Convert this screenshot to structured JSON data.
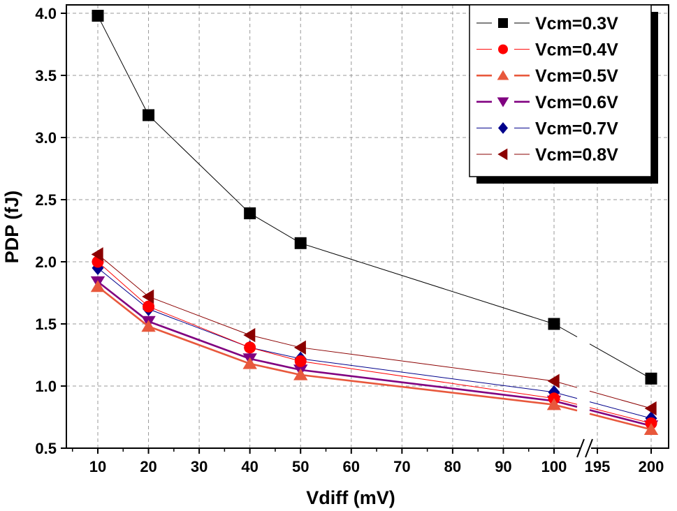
{
  "chart_data": {
    "type": "line",
    "title": "",
    "xlabel": "Vdiff (mV)",
    "ylabel": "PDP (fJ)",
    "ylim": [
      0.5,
      4.0
    ],
    "x_axis": {
      "type": "broken",
      "break_between": [
        100,
        195
      ],
      "segments": [
        {
          "range": [
            5,
            100
          ],
          "ticks": [
            10,
            20,
            30,
            40,
            50,
            60,
            70,
            80,
            90,
            100
          ]
        },
        {
          "range": [
            195,
            202
          ],
          "ticks": [
            195,
            200
          ]
        }
      ]
    },
    "y_ticks": [
      "0.5",
      "1.0",
      "1.5",
      "2.0",
      "2.5",
      "3.0",
      "3.5",
      "4.0"
    ],
    "grid": "horizontal-dashed",
    "x": [
      10,
      20,
      40,
      50,
      100,
      200
    ],
    "series": [
      {
        "name": "Vcm=0.3V",
        "color": "#000000",
        "marker": "square",
        "values": [
          3.98,
          3.18,
          2.39,
          2.15,
          1.5,
          1.06
        ]
      },
      {
        "name": "Vcm=0.4V",
        "color": "#ff0000",
        "marker": "circle",
        "values": [
          2.0,
          1.64,
          1.31,
          1.2,
          0.9,
          0.7
        ]
      },
      {
        "name": "Vcm=0.5V",
        "color": "#e8583c",
        "marker": "triangle-up",
        "values": [
          1.8,
          1.48,
          1.18,
          1.09,
          0.85,
          0.65
        ]
      },
      {
        "name": "Vcm=0.6V",
        "color": "#800080",
        "marker": "triangle-down",
        "values": [
          1.84,
          1.52,
          1.22,
          1.13,
          0.88,
          0.68
        ]
      },
      {
        "name": "Vcm=0.7V",
        "color": "#00008b",
        "marker": "diamond",
        "values": [
          1.95,
          1.62,
          1.31,
          1.22,
          0.95,
          0.74
        ]
      },
      {
        "name": "Vcm=0.8V",
        "color": "#8b0000",
        "marker": "triangle-left",
        "values": [
          2.06,
          1.72,
          1.41,
          1.31,
          1.04,
          0.82
        ]
      }
    ],
    "legend_position": "top-right"
  }
}
